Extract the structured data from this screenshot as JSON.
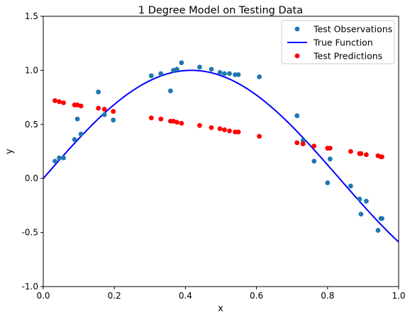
{
  "chart_data": {
    "type": "scatter",
    "title": "1 Degree Model on Testing Data",
    "xlabel": "x",
    "ylabel": "y",
    "xlim": [
      0,
      1.0
    ],
    "ylim": [
      -1.0,
      1.5
    ],
    "xticks": [
      "0.0",
      "0.2",
      "0.4",
      "0.6",
      "0.8",
      "1.0"
    ],
    "xtick_values": [
      0,
      0.2,
      0.4,
      0.6,
      0.8,
      1.0
    ],
    "yticks": [
      "-1.0",
      "-0.5",
      "0.0",
      "0.5",
      "1.0",
      "1.5"
    ],
    "ytick_values": [
      -1.0,
      -0.5,
      0.0,
      0.5,
      1.0,
      1.5
    ],
    "grid": false,
    "legend_position": "top-right",
    "series": [
      {
        "name": "Test Observations",
        "kind": "scatter",
        "color": "#1f77b4",
        "x": [
          0.033,
          0.045,
          0.057,
          0.088,
          0.096,
          0.106,
          0.155,
          0.172,
          0.197,
          0.304,
          0.331,
          0.358,
          0.366,
          0.376,
          0.389,
          0.44,
          0.473,
          0.497,
          0.51,
          0.524,
          0.54,
          0.549,
          0.608,
          0.714,
          0.731,
          0.762,
          0.8,
          0.807,
          0.865,
          0.89,
          0.894,
          0.909,
          0.942,
          0.95,
          0.953
        ],
        "y": [
          0.16,
          0.19,
          0.19,
          0.36,
          0.55,
          0.41,
          0.8,
          0.59,
          0.54,
          0.95,
          0.97,
          0.81,
          1.0,
          1.01,
          1.07,
          1.03,
          1.01,
          0.98,
          0.97,
          0.97,
          0.96,
          0.96,
          0.94,
          0.58,
          0.35,
          0.16,
          -0.04,
          0.18,
          -0.07,
          -0.19,
          -0.33,
          -0.21,
          -0.48,
          -0.37,
          -0.37
        ]
      },
      {
        "name": "True Function",
        "kind": "line",
        "color": "#0000ff",
        "function": "sin(1.2*pi*x)",
        "x_range": [
          0,
          1.0
        ]
      },
      {
        "name": "Test Predictions",
        "kind": "scatter",
        "color": "#ff0000",
        "x": [
          0.033,
          0.045,
          0.057,
          0.088,
          0.096,
          0.106,
          0.155,
          0.172,
          0.197,
          0.304,
          0.331,
          0.358,
          0.366,
          0.376,
          0.389,
          0.44,
          0.473,
          0.497,
          0.51,
          0.524,
          0.54,
          0.549,
          0.608,
          0.714,
          0.731,
          0.762,
          0.8,
          0.807,
          0.865,
          0.89,
          0.894,
          0.909,
          0.942,
          0.95,
          0.953
        ],
        "y": [
          0.72,
          0.71,
          0.7,
          0.68,
          0.68,
          0.67,
          0.65,
          0.64,
          0.62,
          0.56,
          0.55,
          0.53,
          0.53,
          0.52,
          0.51,
          0.49,
          0.47,
          0.46,
          0.45,
          0.44,
          0.43,
          0.43,
          0.39,
          0.33,
          0.32,
          0.3,
          0.28,
          0.28,
          0.25,
          0.23,
          0.23,
          0.22,
          0.21,
          0.2,
          0.2
        ]
      }
    ]
  }
}
